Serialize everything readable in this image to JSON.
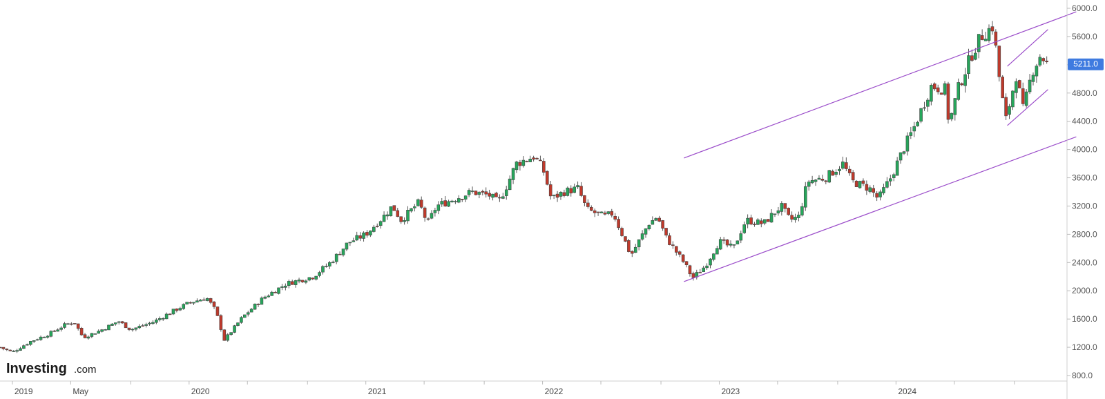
{
  "chart_data": {
    "type": "candlestick",
    "title": "",
    "xlabel": "",
    "ylabel": "",
    "ylim": [
      800,
      6000
    ],
    "y_ticks": [
      "6000.0",
      "5600.0",
      "5200.0",
      "4800.0",
      "4400.0",
      "4000.0",
      "3600.0",
      "3200.0",
      "2800.0",
      "2400.0",
      "2000.0",
      "1600.0",
      "1200.0",
      "800.0"
    ],
    "x_ticks": [
      {
        "label": "2019",
        "year": 2019.0
      },
      {
        "label": "May",
        "year": 2019.33
      },
      {
        "label": "",
        "year": 2019.67
      },
      {
        "label": "2020",
        "year": 2020.0
      },
      {
        "label": "",
        "year": 2020.33
      },
      {
        "label": "",
        "year": 2020.67
      },
      {
        "label": "2021",
        "year": 2021.0
      },
      {
        "label": "",
        "year": 2021.33
      },
      {
        "label": "",
        "year": 2021.67
      },
      {
        "label": "2022",
        "year": 2022.0
      },
      {
        "label": "",
        "year": 2022.33
      },
      {
        "label": "",
        "year": 2022.67
      },
      {
        "label": "2023",
        "year": 2023.0
      },
      {
        "label": "",
        "year": 2023.33
      },
      {
        "label": "",
        "year": 2023.67
      },
      {
        "label": "2024",
        "year": 2024.0
      },
      {
        "label": "",
        "year": 2024.33
      },
      {
        "label": "",
        "year": 2024.67
      }
    ],
    "x_range": [
      2018.93,
      2024.87
    ],
    "last_price": "5211.0",
    "grid": false,
    "series": [
      {
        "kind": "close_path",
        "points": [
          [
            2018.93,
            1200
          ],
          [
            2019.0,
            1130
          ],
          [
            2019.1,
            1280
          ],
          [
            2019.2,
            1380
          ],
          [
            2019.3,
            1520
          ],
          [
            2019.35,
            1560
          ],
          [
            2019.4,
            1340
          ],
          [
            2019.5,
            1440
          ],
          [
            2019.6,
            1570
          ],
          [
            2019.67,
            1450
          ],
          [
            2019.8,
            1560
          ],
          [
            2019.9,
            1700
          ],
          [
            2020.0,
            1830
          ],
          [
            2020.1,
            1900
          ],
          [
            2020.15,
            1720
          ],
          [
            2020.2,
            1300
          ],
          [
            2020.3,
            1620
          ],
          [
            2020.42,
            1900
          ],
          [
            2020.55,
            2100
          ],
          [
            2020.7,
            2200
          ],
          [
            2020.8,
            2400
          ],
          [
            2020.9,
            2680
          ],
          [
            2021.0,
            2800
          ],
          [
            2021.1,
            3050
          ],
          [
            2021.15,
            3200
          ],
          [
            2021.2,
            3000
          ],
          [
            2021.3,
            3250
          ],
          [
            2021.35,
            2950
          ],
          [
            2021.4,
            3200
          ],
          [
            2021.5,
            3300
          ],
          [
            2021.6,
            3400
          ],
          [
            2021.7,
            3350
          ],
          [
            2021.75,
            3250
          ],
          [
            2021.8,
            3500
          ],
          [
            2021.85,
            3800
          ],
          [
            2021.95,
            3900
          ],
          [
            2022.0,
            3750
          ],
          [
            2022.05,
            3300
          ],
          [
            2022.12,
            3400
          ],
          [
            2022.2,
            3450
          ],
          [
            2022.25,
            3150
          ],
          [
            2022.35,
            3050
          ],
          [
            2022.4,
            3100
          ],
          [
            2022.45,
            2800
          ],
          [
            2022.5,
            2500
          ],
          [
            2022.6,
            2950
          ],
          [
            2022.65,
            3050
          ],
          [
            2022.7,
            2750
          ],
          [
            2022.8,
            2400
          ],
          [
            2022.85,
            2180
          ],
          [
            2022.92,
            2350
          ],
          [
            2023.0,
            2700
          ],
          [
            2023.08,
            2600
          ],
          [
            2023.15,
            3000
          ],
          [
            2023.25,
            2950
          ],
          [
            2023.35,
            3200
          ],
          [
            2023.4,
            3000
          ],
          [
            2023.45,
            3050
          ],
          [
            2023.5,
            3550
          ],
          [
            2023.6,
            3600
          ],
          [
            2023.7,
            3800
          ],
          [
            2023.75,
            3550
          ],
          [
            2023.85,
            3450
          ],
          [
            2023.9,
            3300
          ],
          [
            2023.97,
            3600
          ],
          [
            2024.05,
            4050
          ],
          [
            2024.1,
            4300
          ],
          [
            2024.15,
            4600
          ],
          [
            2024.2,
            4900
          ],
          [
            2024.28,
            4850
          ],
          [
            2024.3,
            4350
          ],
          [
            2024.35,
            4850
          ],
          [
            2024.42,
            5300
          ],
          [
            2024.48,
            5600
          ],
          [
            2024.55,
            5750
          ],
          [
            2024.58,
            5100
          ],
          [
            2024.62,
            4400
          ],
          [
            2024.68,
            5050
          ],
          [
            2024.72,
            4550
          ],
          [
            2024.77,
            5100
          ],
          [
            2024.82,
            5350
          ],
          [
            2024.85,
            5211
          ]
        ]
      },
      {
        "kind": "trendline",
        "points": [
          [
            2022.8,
            3880
          ],
          [
            2025.02,
            5950
          ]
        ]
      },
      {
        "kind": "trendline",
        "points": [
          [
            2022.8,
            2130
          ],
          [
            2025.02,
            4180
          ]
        ]
      },
      {
        "kind": "trendline",
        "points": [
          [
            2024.63,
            4340
          ],
          [
            2024.86,
            4850
          ]
        ]
      },
      {
        "kind": "trendline",
        "points": [
          [
            2024.63,
            5180
          ],
          [
            2024.86,
            5700
          ]
        ]
      }
    ]
  },
  "colors": {
    "up": "#26a65b",
    "down": "#c0392b",
    "trendline": "#9b4dca",
    "axis": "#cccccc",
    "price_badge": "#3f7be0"
  },
  "logo": {
    "brand": "Investing",
    "domain": ".com"
  }
}
